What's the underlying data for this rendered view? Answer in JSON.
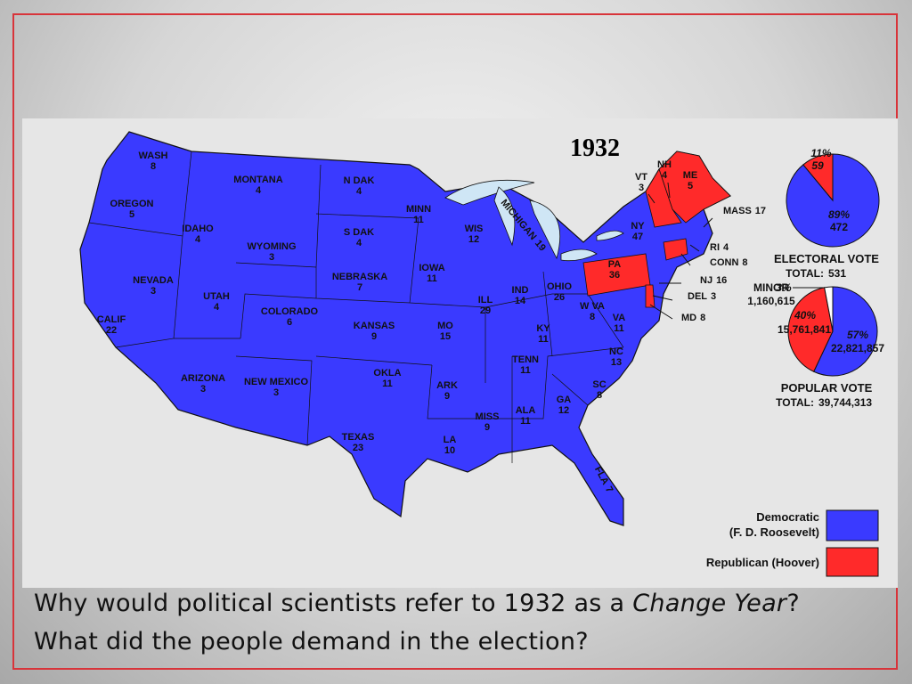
{
  "map": {
    "title": "1932",
    "states": [
      {
        "name": "WASH",
        "votes": 8
      },
      {
        "name": "OREGON",
        "votes": 5
      },
      {
        "name": "CALIF",
        "votes": 22
      },
      {
        "name": "IDAHO",
        "votes": 4
      },
      {
        "name": "NEVADA",
        "votes": 3
      },
      {
        "name": "MONTANA",
        "votes": 4
      },
      {
        "name": "WYOMING",
        "votes": 3
      },
      {
        "name": "UTAH",
        "votes": 4
      },
      {
        "name": "ARIZONA",
        "votes": 3
      },
      {
        "name": "COLORADO",
        "votes": 6
      },
      {
        "name": "NEW MEXICO",
        "votes": 3
      },
      {
        "name": "N DAK",
        "votes": 4
      },
      {
        "name": "S DAK",
        "votes": 4
      },
      {
        "name": "NEBRASKA",
        "votes": 7
      },
      {
        "name": "KANSAS",
        "votes": 9
      },
      {
        "name": "OKLA",
        "votes": 11
      },
      {
        "name": "TEXAS",
        "votes": 23
      },
      {
        "name": "MINN",
        "votes": 11
      },
      {
        "name": "IOWA",
        "votes": 11
      },
      {
        "name": "MO",
        "votes": 15
      },
      {
        "name": "ARK",
        "votes": 9
      },
      {
        "name": "LA",
        "votes": 10
      },
      {
        "name": "WIS",
        "votes": 12
      },
      {
        "name": "ILL",
        "votes": 29
      },
      {
        "name": "MISS",
        "votes": 9
      },
      {
        "name": "MICHIGAN",
        "votes": 19
      },
      {
        "name": "IND",
        "votes": 14
      },
      {
        "name": "KY",
        "votes": 11
      },
      {
        "name": "TENN",
        "votes": 11
      },
      {
        "name": "ALA",
        "votes": 11
      },
      {
        "name": "OHIO",
        "votes": 26
      },
      {
        "name": "GA",
        "votes": 12
      },
      {
        "name": "FLA",
        "votes": 7
      },
      {
        "name": "SC",
        "votes": 8
      },
      {
        "name": "NC",
        "votes": 13
      },
      {
        "name": "VA",
        "votes": 11
      },
      {
        "name": "W VA",
        "votes": 8
      },
      {
        "name": "MD",
        "votes": 8
      },
      {
        "name": "DEL",
        "votes": 3
      },
      {
        "name": "NJ",
        "votes": 16
      },
      {
        "name": "PA",
        "votes": 36
      },
      {
        "name": "NY",
        "votes": 47
      },
      {
        "name": "CONN",
        "votes": 8
      },
      {
        "name": "RI",
        "votes": 4
      },
      {
        "name": "MASS",
        "votes": 17
      },
      {
        "name": "VT",
        "votes": 3
      },
      {
        "name": "NH",
        "votes": 4
      },
      {
        "name": "ME",
        "votes": 5
      }
    ],
    "electoral_vote": {
      "title": "ELECTORAL VOTE",
      "total_label": "TOTAL:",
      "total": 531,
      "slices": [
        {
          "value": 89,
          "label": "89%",
          "votes": 472,
          "color": "#3a3aff"
        },
        {
          "value": 11,
          "label": "11%",
          "votes": 59,
          "color": "#ff2a2a"
        }
      ]
    },
    "popular_vote": {
      "title": "POPULAR VOTE",
      "total_label": "TOTAL:",
      "total": "39,744,313",
      "slices": [
        {
          "value": 57,
          "label": "57%",
          "votes": "22,821,857",
          "color": "#3a3aff"
        },
        {
          "value": 40,
          "label": "40%",
          "votes": "15,761,841",
          "color": "#ff2a2a"
        },
        {
          "name": "MINOR",
          "value": 3,
          "label": "3%",
          "votes": "1,160,615",
          "color": "#ffffff"
        }
      ]
    },
    "legend": [
      {
        "label": "Democratic",
        "sublabel": "(F. D. Roosevelt)",
        "color": "#3a3aff"
      },
      {
        "label": "Republican (Hoover)",
        "color": "#ff2a2a"
      }
    ]
  },
  "question": {
    "line1_start": "Why would political scientists refer to 1932 as a ",
    "line1_emphasis": "Change Year",
    "line1_end": "?",
    "line2": "What did the people demand in the election?"
  }
}
